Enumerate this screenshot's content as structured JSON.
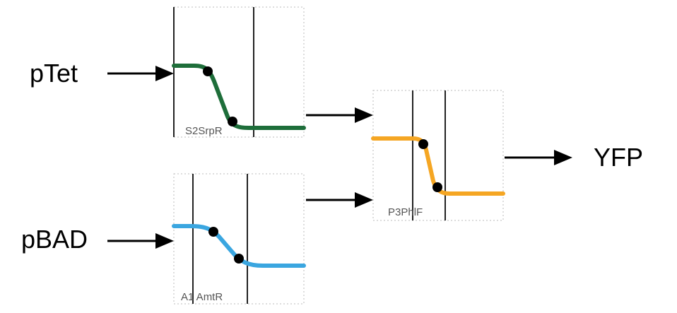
{
  "inputs": [
    {
      "label": "pTet"
    },
    {
      "label": "pBAD"
    }
  ],
  "output": {
    "label": "YFP"
  },
  "gates": [
    {
      "label": "S2SrpR",
      "color": "#1e6e3a"
    },
    {
      "label": "A1 AmtR",
      "color": "#3aa6e0"
    },
    {
      "label": "P3PhlF",
      "color": "#f5a623"
    }
  ]
}
